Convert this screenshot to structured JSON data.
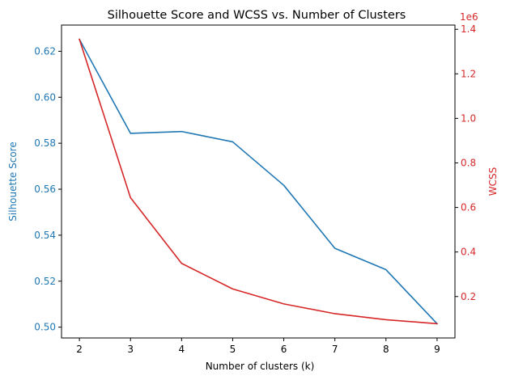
{
  "chart_data": {
    "type": "line",
    "title": "Silhouette Score and WCSS vs. Number of Clusters",
    "xlabel": "Number of clusters (k)",
    "x": [
      2,
      3,
      4,
      5,
      6,
      7,
      8,
      9
    ],
    "xlim": [
      1.65,
      9.35
    ],
    "xticks": [
      "2",
      "3",
      "4",
      "5",
      "6",
      "7",
      "8",
      "9"
    ],
    "grid": false,
    "series": [
      {
        "axis": "left",
        "color": "#1f77b4",
        "values": [
          0.6252,
          0.5843,
          0.5851,
          0.5806,
          0.5617,
          0.5343,
          0.525,
          0.5015
        ]
      },
      {
        "axis": "right",
        "color": "#d62728",
        "values": [
          1355000,
          644000,
          349000,
          234000,
          167000,
          123000,
          96000,
          78000
        ]
      }
    ],
    "y_left": {
      "label": "Silhouette Score",
      "color": "#1f77b4",
      "lim": [
        0.4953,
        0.6314
      ],
      "ticks": [
        0.5,
        0.52,
        0.54,
        0.56,
        0.58,
        0.6,
        0.62
      ],
      "tick_labels": [
        "0.50",
        "0.52",
        "0.54",
        "0.56",
        "0.58",
        "0.60",
        "0.62"
      ]
    },
    "y_right": {
      "label": "WCSS",
      "color": "#d62728",
      "lim": [
        14000,
        1419000
      ],
      "ticks": [
        200000,
        400000,
        600000,
        800000,
        1000000,
        1200000,
        1400000
      ],
      "tick_labels": [
        "0.2",
        "0.4",
        "0.6",
        "0.8",
        "1.0",
        "1.2",
        "1.4"
      ],
      "offset_text": "1e6"
    }
  }
}
